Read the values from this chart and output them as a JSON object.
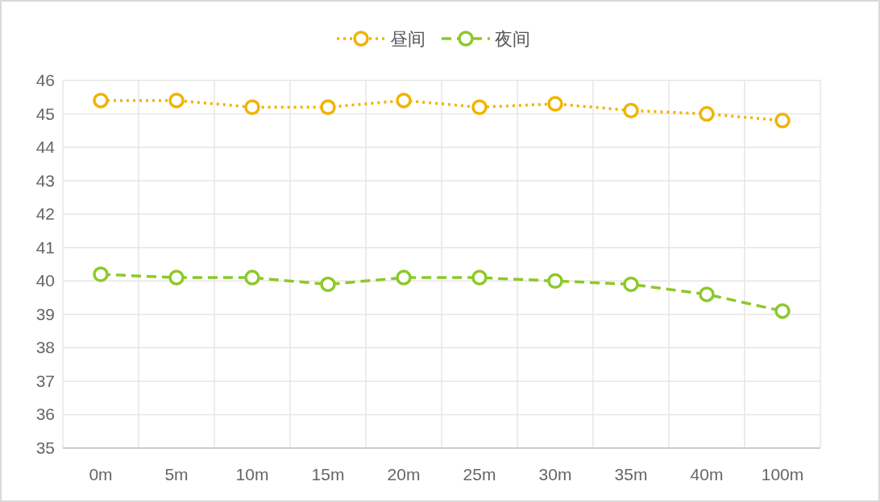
{
  "chart_data": {
    "type": "line",
    "categories": [
      "0m",
      "5m",
      "10m",
      "15m",
      "20m",
      "25m",
      "30m",
      "35m",
      "40m",
      "100m"
    ],
    "series": [
      {
        "name": "昼间",
        "color": "#f0b400",
        "line_style": "dotted",
        "values": [
          45.4,
          45.4,
          45.2,
          45.2,
          45.4,
          45.2,
          45.3,
          45.1,
          45.0,
          44.8
        ]
      },
      {
        "name": "夜间",
        "color": "#8cc928",
        "line_style": "dashed",
        "values": [
          40.2,
          40.1,
          40.1,
          39.9,
          40.1,
          40.1,
          40.0,
          39.9,
          39.6,
          39.1
        ]
      }
    ],
    "ylim": [
      35,
      46
    ],
    "yticks": [
      35,
      36,
      37,
      38,
      39,
      40,
      41,
      42,
      43,
      44,
      45,
      46
    ],
    "grid": true,
    "legend": "top",
    "marker": "circle"
  }
}
